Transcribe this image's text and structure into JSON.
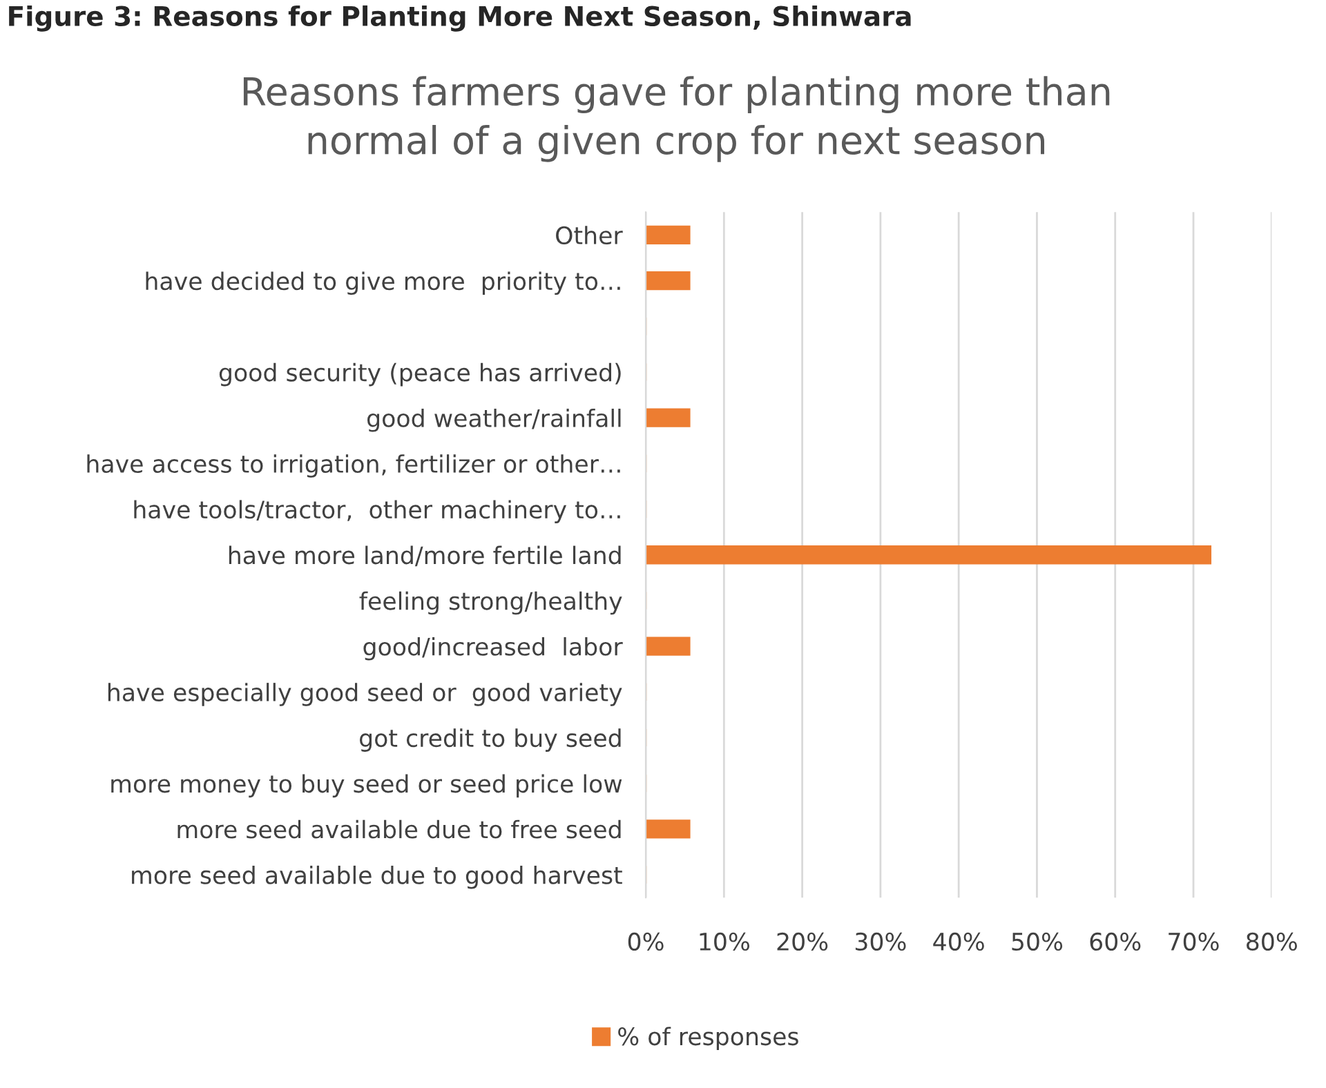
{
  "chart_data": {
    "type": "bar",
    "orientation": "horizontal",
    "title": "Reasons farmers gave for planting more than\nnormal of a given crop for next season",
    "annotations": [
      "Figure 3: Reasons for Planting More Next Season, Shinwara"
    ],
    "categories": [
      "Other",
      "have decided to give more  priority to…",
      null,
      "good security (peace has arrived)",
      "good weather/rainfall",
      "have access to irrigation, fertilizer or other…",
      "have tools/tractor,  other machinery to…",
      "have more land/more fertile land",
      "feeling strong/healthy",
      "good/increased  labor",
      "have especially good seed or  good variety",
      "got credit to buy seed",
      "more money to buy seed or seed price low",
      "more seed available due to free seed",
      "more seed available due to good harvest"
    ],
    "series": [
      {
        "name": "% of responses",
        "color": "#ed7d31",
        "values": [
          5.6,
          5.6,
          0,
          0,
          5.6,
          0,
          0,
          72.2,
          0,
          5.6,
          0,
          0,
          0,
          5.6,
          0
        ]
      }
    ],
    "xlim": [
      0,
      80
    ],
    "xticks": [
      {
        "value": 0,
        "label": "0%"
      },
      {
        "value": 10,
        "label": "10%"
      },
      {
        "value": 20,
        "label": "20%"
      },
      {
        "value": 30,
        "label": "30%"
      },
      {
        "value": 40,
        "label": "40%"
      },
      {
        "value": 50,
        "label": "50%"
      },
      {
        "value": 60,
        "label": "60%"
      },
      {
        "value": 70,
        "label": "70%"
      },
      {
        "value": 80,
        "label": "80%"
      }
    ],
    "grid": "x",
    "legend": "bottom"
  }
}
